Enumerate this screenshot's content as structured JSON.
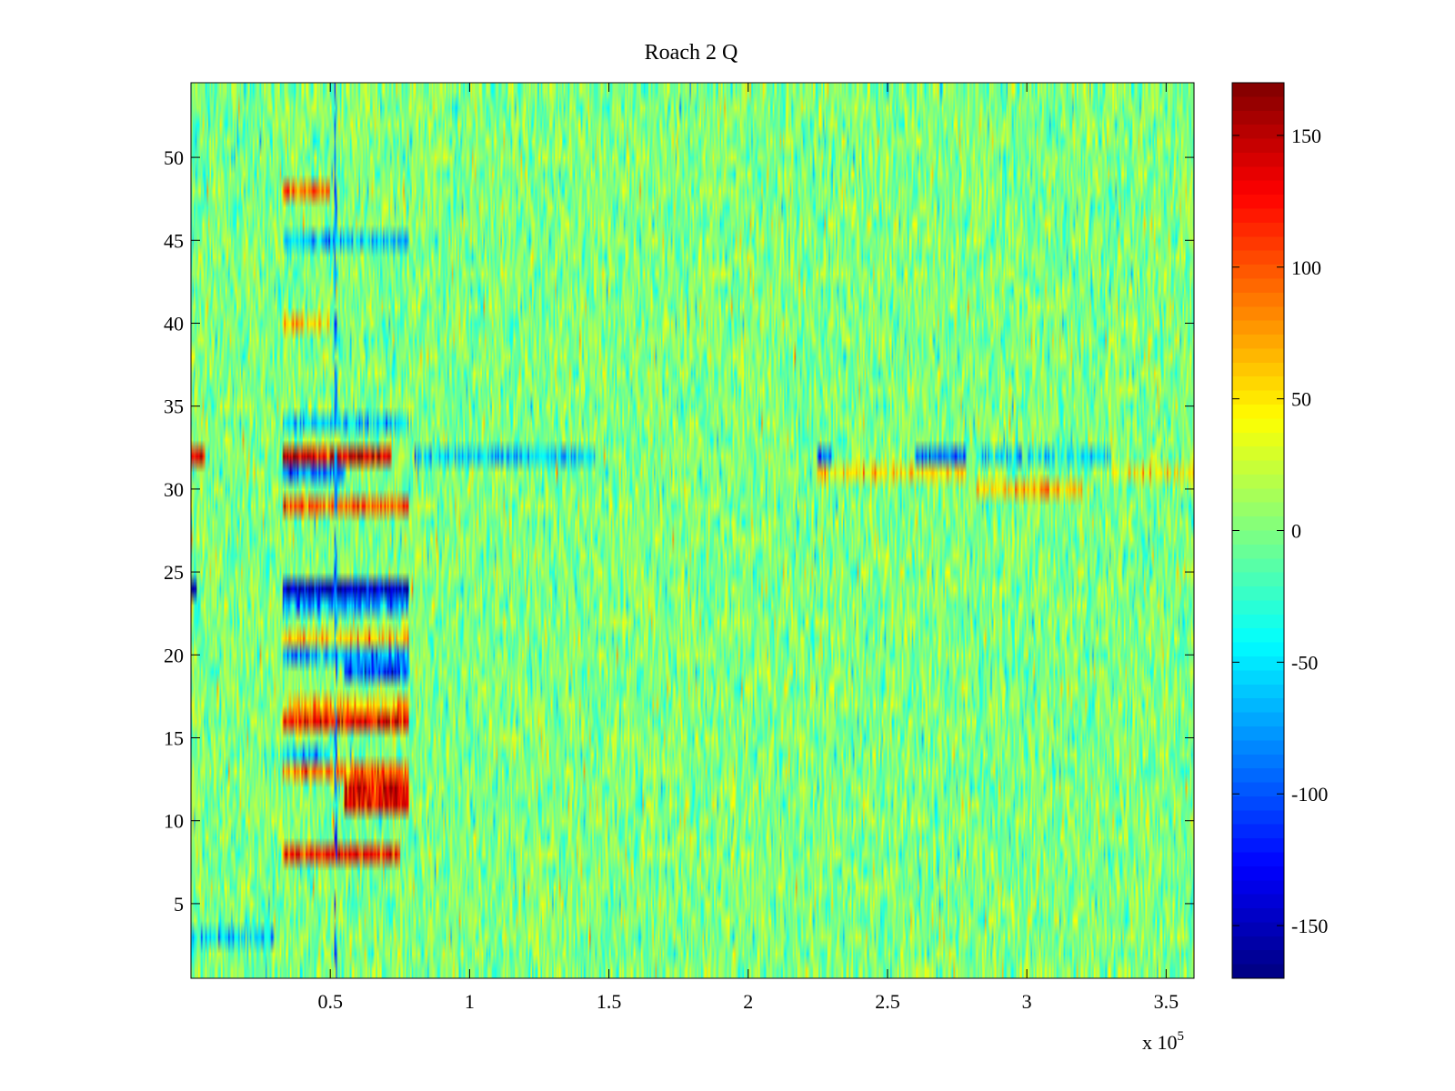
{
  "chart_data": {
    "type": "heatmap",
    "title": "Roach 2 Q",
    "xlabel": "",
    "ylabel": "",
    "x_multiplier_label": "x 10",
    "x_multiplier_exponent": "5",
    "xlim": [
      0,
      3.6
    ],
    "ylim": [
      0.5,
      54.5
    ],
    "x_ticks": [
      0.5,
      1,
      1.5,
      2,
      2.5,
      3,
      3.5
    ],
    "x_tick_labels": [
      "0.5",
      "1",
      "1.5",
      "2",
      "2.5",
      "3",
      "3.5"
    ],
    "y_ticks": [
      5,
      10,
      15,
      20,
      25,
      30,
      35,
      40,
      45,
      50
    ],
    "y_tick_labels": [
      "5",
      "10",
      "15",
      "20",
      "25",
      "30",
      "35",
      "40",
      "45",
      "50"
    ],
    "rows": 54,
    "colormap": "jet",
    "clim": [
      -170,
      170
    ],
    "colorbar_ticks": [
      150,
      100,
      50,
      0,
      -50,
      -100,
      -150
    ],
    "colorbar_tick_labels": [
      "150",
      "100",
      "50",
      "0",
      "-50",
      "-100",
      "-150"
    ],
    "grid": false,
    "background_mean_value": 0,
    "noise_amplitude": 22,
    "row_features": [
      {
        "row": 32,
        "x_range": [
          0.33,
          0.72
        ],
        "value": 140
      },
      {
        "row": 32,
        "x_range": [
          0.0,
          0.05
        ],
        "value": 130
      },
      {
        "row": 31,
        "x_range": [
          0.33,
          0.55
        ],
        "value": -90
      },
      {
        "row": 29,
        "x_range": [
          0.33,
          0.78
        ],
        "value": 90
      },
      {
        "row": 24,
        "x_range": [
          0.33,
          0.78
        ],
        "value": -150
      },
      {
        "row": 24,
        "x_range": [
          0.0,
          0.02
        ],
        "value": -150
      },
      {
        "row": 23,
        "x_range": [
          0.33,
          0.78
        ],
        "value": -70
      },
      {
        "row": 21,
        "x_range": [
          0.33,
          0.78
        ],
        "value": 60
      },
      {
        "row": 20,
        "x_range": [
          0.33,
          0.78
        ],
        "value": -70
      },
      {
        "row": 19,
        "x_range": [
          0.55,
          0.78
        ],
        "value": -110
      },
      {
        "row": 16,
        "x_range": [
          0.33,
          0.78
        ],
        "value": 130
      },
      {
        "row": 17,
        "x_range": [
          0.33,
          0.78
        ],
        "value": 60
      },
      {
        "row": 14,
        "x_range": [
          0.33,
          0.5
        ],
        "value": -60
      },
      {
        "row": 12,
        "x_range": [
          0.55,
          0.78
        ],
        "value": 130
      },
      {
        "row": 11,
        "x_range": [
          0.55,
          0.78
        ],
        "value": 130
      },
      {
        "row": 13,
        "x_range": [
          0.33,
          0.78
        ],
        "value": 80
      },
      {
        "row": 8,
        "x_range": [
          0.33,
          0.75
        ],
        "value": 120
      },
      {
        "row": 45,
        "x_range": [
          0.33,
          0.78
        ],
        "value": -60
      },
      {
        "row": 48,
        "x_range": [
          0.33,
          0.5
        ],
        "value": 90
      },
      {
        "row": 34,
        "x_range": [
          0.33,
          0.78
        ],
        "value": -60
      },
      {
        "row": 40,
        "x_range": [
          0.33,
          0.5
        ],
        "value": 60
      },
      {
        "row": 3,
        "x_range": [
          0.0,
          0.3
        ],
        "value": -50
      },
      {
        "row": 32,
        "x_range": [
          0.8,
          1.45
        ],
        "value": -50
      },
      {
        "row": 32,
        "x_range": [
          2.25,
          2.3
        ],
        "value": -90
      },
      {
        "row": 32,
        "x_range": [
          2.6,
          2.78
        ],
        "value": -90
      },
      {
        "row": 31,
        "x_range": [
          2.25,
          2.78
        ],
        "value": 45
      },
      {
        "row": 32,
        "x_range": [
          2.82,
          3.3
        ],
        "value": -45
      },
      {
        "row": 30,
        "x_range": [
          2.82,
          3.2
        ],
        "value": 60
      },
      {
        "row": 31,
        "x_range": [
          3.3,
          3.6
        ],
        "value": 40
      }
    ],
    "vertical_features": [
      {
        "x": 0.52,
        "value": -90
      }
    ]
  }
}
